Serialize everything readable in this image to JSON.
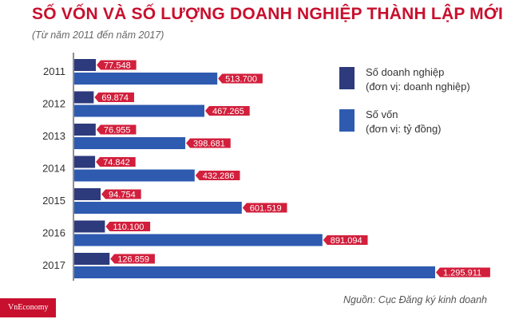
{
  "title": "SỐ VỐN VÀ SỐ LƯỢNG DOANH NGHIỆP THÀNH LẬP MỚI",
  "subtitle": "(Từ năm 2011 đến năm 2017)",
  "source": "Nguồn: Cục Đăng ký kinh doanh",
  "logo": "VnEconomy",
  "colors": {
    "title": "#c8102e",
    "series_enterprises": "#2d3a7c",
    "series_capital": "#2e5bb0",
    "label_bg": "#d21f3c"
  },
  "legend": [
    {
      "line1": "Số doanh nghiệp",
      "line2": "(đơn vị: doanh nghiệp)"
    },
    {
      "line1": "Số vốn",
      "line2": "(đơn vị: tỷ đồng)"
    }
  ],
  "chart_data": {
    "type": "bar",
    "orientation": "horizontal",
    "categories": [
      "2011",
      "2012",
      "2013",
      "2014",
      "2015",
      "2016",
      "2017"
    ],
    "series": [
      {
        "name": "Số doanh nghiệp (đơn vị: doanh nghiệp)",
        "values": [
          77548,
          69874,
          76955,
          74842,
          94754,
          110100,
          126859
        ],
        "labels": [
          "77.548",
          "69.874",
          "76.955",
          "74.842",
          "94.754",
          "110.100",
          "126.859"
        ]
      },
      {
        "name": "Số vốn (đơn vị: tỷ đồng)",
        "values": [
          513700,
          467265,
          398681,
          432286,
          601519,
          891094,
          1295911
        ],
        "labels": [
          "513.700",
          "467.265",
          "398.681",
          "432.286",
          "601.519",
          "891.094",
          "1.295.911"
        ]
      }
    ],
    "grid": false,
    "legend_position": "right"
  }
}
